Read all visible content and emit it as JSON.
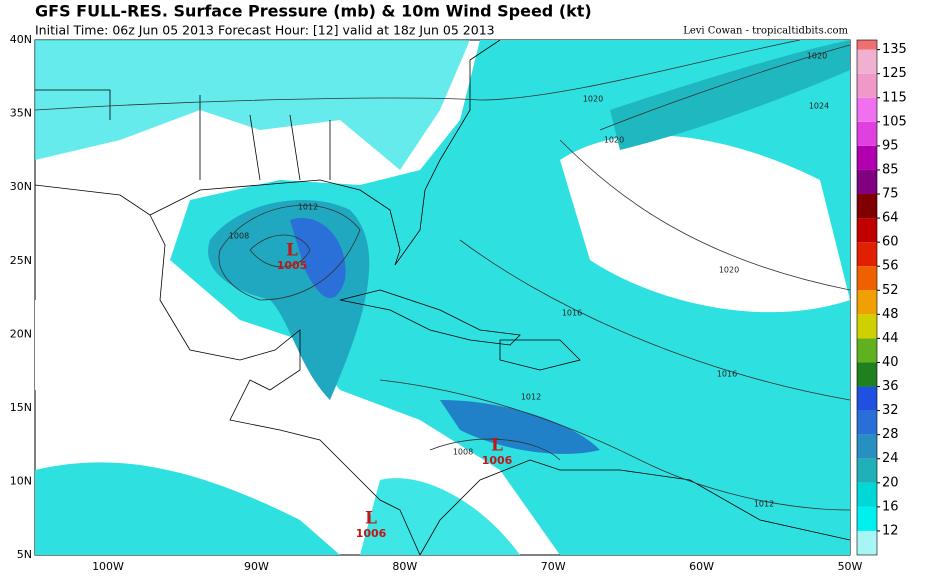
{
  "header": {
    "title": "GFS FULL-RES. Surface Pressure (mb) & 10m Wind Speed (kt)",
    "subtitle": "Initial Time: 06z Jun 05 2013 Forecast Hour: [12] valid at 18z Jun 05 2013",
    "credit": "Levi Cowan - tropicaltidbits.com"
  },
  "map": {
    "lat_labels": [
      "40N",
      "35N",
      "30N",
      "25N",
      "20N",
      "15N",
      "10N",
      "5N"
    ],
    "lon_labels": [
      "100W",
      "90W",
      "80W",
      "70W",
      "60W",
      "50W"
    ],
    "isobar_labels": [
      "1020",
      "1020",
      "1020",
      "1024",
      "1020",
      "1016",
      "1016",
      "1012",
      "1008",
      "1012",
      "1008",
      "1012"
    ],
    "lows": [
      {
        "symbol": "L",
        "pressure": "1005"
      },
      {
        "symbol": "L",
        "pressure": "1006"
      },
      {
        "symbol": "L",
        "pressure": "1006"
      }
    ]
  },
  "colorbar": {
    "labels": [
      "12",
      "16",
      "20",
      "24",
      "28",
      "32",
      "36",
      "40",
      "44",
      "48",
      "52",
      "56",
      "60",
      "64",
      "75",
      "85",
      "95",
      "105",
      "115",
      "125",
      "135"
    ],
    "colors": [
      "#a8f5f5",
      "#00f0f0",
      "#00d8d8",
      "#20b0b8",
      "#2890c0",
      "#2870d8",
      "#2050e0",
      "#208020",
      "#60b020",
      "#d0d000",
      "#f0a000",
      "#f06000",
      "#e02000",
      "#c00000",
      "#800000",
      "#800080",
      "#b000b0",
      "#e040e0",
      "#f070f0",
      "#f098c8",
      "#f0b0d0",
      "#f07070"
    ]
  }
}
